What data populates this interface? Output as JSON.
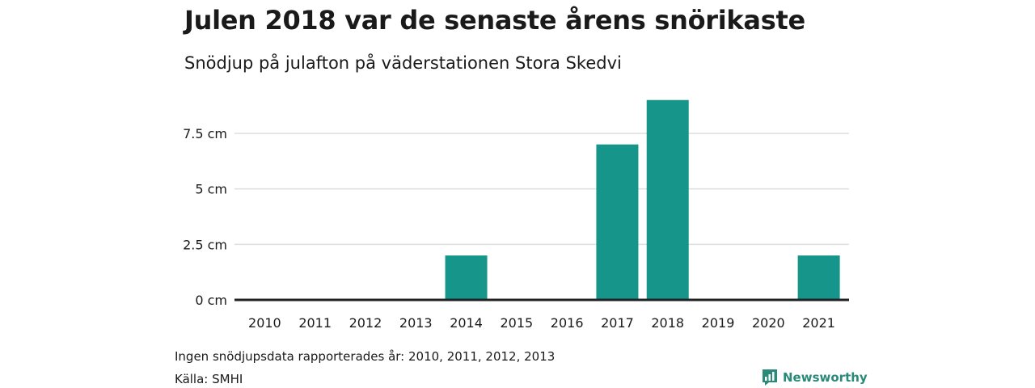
{
  "title": "Julen 2018 var de senaste årens snörikaste",
  "subtitle": "Snödjup på julafton på väderstationen Stora Skedvi",
  "note": "Ingen snödjupsdata rapporterades år: 2010, 2011, 2012, 2013",
  "source": "Källa: SMHI",
  "brand": {
    "name": "Newsworthy",
    "icon": "newsworthy-logo-icon",
    "color": "#2a8a7a"
  },
  "chart_data": {
    "type": "bar",
    "categories": [
      "2010",
      "2011",
      "2012",
      "2013",
      "2014",
      "2015",
      "2016",
      "2017",
      "2018",
      "2019",
      "2020",
      "2021"
    ],
    "values": [
      0,
      0,
      0,
      0,
      2,
      0,
      0,
      7,
      9,
      0,
      0,
      2
    ],
    "ylim": [
      0,
      9.5
    ],
    "yticks": [
      0,
      2.5,
      5,
      7.5
    ],
    "ytick_labels": [
      "0 cm",
      "2.5 cm",
      "5 cm",
      "7.5 cm"
    ],
    "bar_color": "#16968a",
    "grid": true,
    "legend": "none"
  }
}
